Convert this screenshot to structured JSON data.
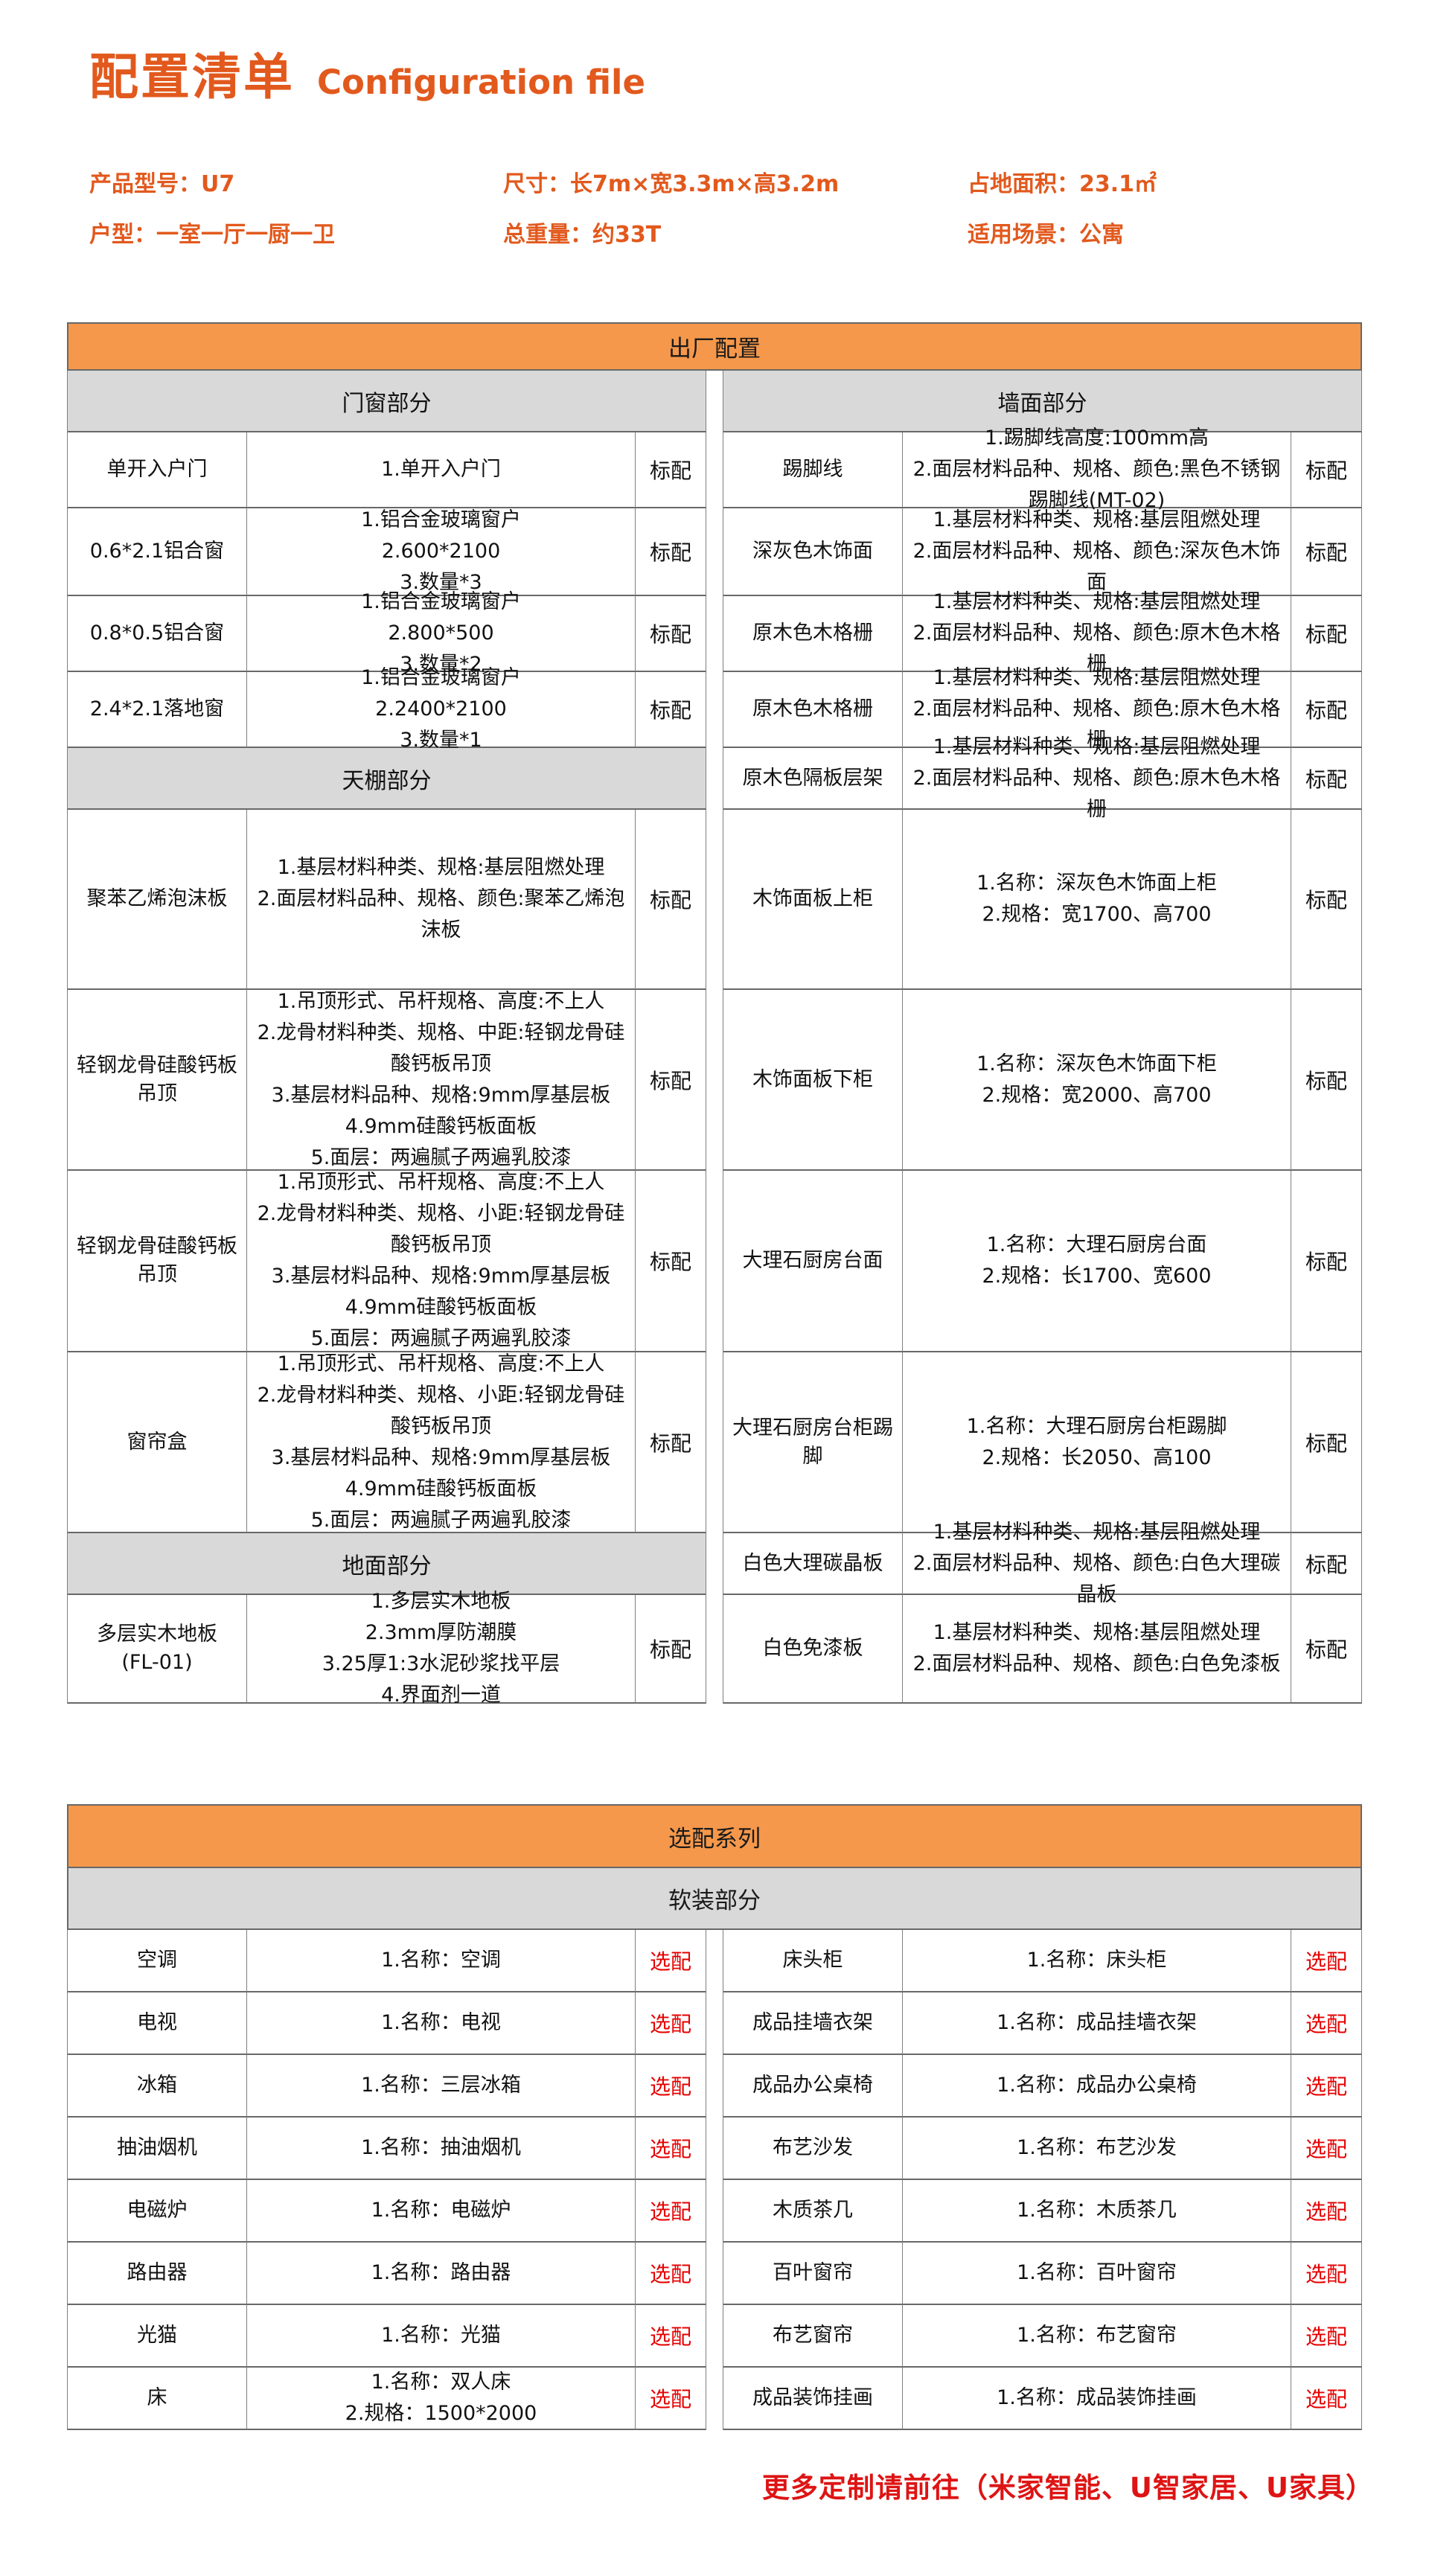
{
  "colors": {
    "accent_orange": "#F5984B",
    "title_orange": "#E2591D",
    "section_gray": "#D9D9D9",
    "optional_red": "#E60000",
    "note_red": "#DE1414"
  },
  "header": {
    "title_zh": "配置清单",
    "title_en": "Configuration file"
  },
  "product_info": {
    "row1": [
      {
        "label": "产品型号：",
        "value": "U7"
      },
      {
        "label": "尺寸：",
        "value": "长7m×宽3.3m×高3.2m"
      },
      {
        "label": "占地面积：",
        "value": "23.1㎡"
      }
    ],
    "row2": [
      {
        "label": "户型：",
        "value": "一室一厅一厨一卫"
      },
      {
        "label": "总重量：",
        "value": "约33T"
      },
      {
        "label": "适用场景：",
        "value": "公寓"
      }
    ]
  },
  "factory_table": {
    "title": "出厂配置",
    "rows": [
      {
        "left": {
          "type": "section",
          "text": "门窗部分"
        },
        "right": {
          "type": "section",
          "text": "墙面部分"
        }
      },
      {
        "left": {
          "name": "单开入户门",
          "desc": [
            "1.单开入户门"
          ],
          "flag": "标配"
        },
        "right": {
          "name": "踢脚线",
          "desc": [
            "1.踢脚线高度:100mm高",
            "2.面层材料品种、规格、颜色:黑色不锈钢踢脚线(MT-02)"
          ],
          "flag": "标配"
        }
      },
      {
        "left": {
          "name": "0.6*2.1铝合窗",
          "desc": [
            "1.铝合金玻璃窗户",
            "2.600*2100",
            "3.数量*3"
          ],
          "flag": "标配"
        },
        "right": {
          "name": "深灰色木饰面",
          "desc": [
            "1.基层材料种类、规格:基层阻燃处理",
            "2.面层材料品种、规格、颜色:深灰色木饰面"
          ],
          "flag": "标配"
        }
      },
      {
        "left": {
          "name": "0.8*0.5铝合窗",
          "desc": [
            "1.铝合金玻璃窗户",
            "2.800*500",
            "3.数量*2"
          ],
          "flag": "标配"
        },
        "right": {
          "name": "原木色木格栅",
          "desc": [
            "1.基层材料种类、规格:基层阻燃处理",
            "2.面层材料品种、规格、颜色:原木色木格栅"
          ],
          "flag": "标配"
        }
      },
      {
        "left": {
          "name": "2.4*2.1落地窗",
          "desc": [
            "1.铝合金玻璃窗户",
            "2.2400*2100",
            "3.数量*1"
          ],
          "flag": "标配"
        },
        "right": {
          "name": "原木色木格栅",
          "desc": [
            "1.基层材料种类、规格:基层阻燃处理",
            "2.面层材料品种、规格、颜色:原木色木格栅"
          ],
          "flag": "标配"
        }
      },
      {
        "left": {
          "type": "section",
          "text": "天棚部分"
        },
        "right": {
          "name": "原木色隔板层架",
          "desc": [
            "1.基层材料种类、规格:基层阻燃处理",
            "2.面层材料品种、规格、颜色:原木色木格栅"
          ],
          "flag": "标配"
        }
      },
      {
        "left": {
          "name": "聚苯乙烯泡沫板",
          "desc": [
            "1.基层材料种类、规格:基层阻燃处理",
            "2.面层材料品种、规格、颜色:聚苯乙烯泡沫板"
          ],
          "flag": "标配"
        },
        "right": {
          "name": "木饰面板上柜",
          "desc": [
            "1.名称：深灰色木饰面上柜",
            "2.规格：宽1700、高700"
          ],
          "flag": "标配"
        }
      },
      {
        "left": {
          "name": "轻钢龙骨硅酸钙板吊顶",
          "desc": [
            "1.吊顶形式、吊杆规格、高度:不上人",
            "2.龙骨材料种类、规格、中距:轻钢龙骨硅酸钙板吊顶",
            "3.基层材料品种、规格:9mm厚基层板",
            "4.9mm硅酸钙板面板",
            "5.面层：两遍腻子两遍乳胶漆"
          ],
          "flag": "标配"
        },
        "right": {
          "name": "木饰面板下柜",
          "desc": [
            "1.名称：深灰色木饰面下柜",
            "2.规格：宽2000、高700"
          ],
          "flag": "标配"
        }
      },
      {
        "left": {
          "name": "轻钢龙骨硅酸钙板吊顶",
          "desc": [
            "1.吊顶形式、吊杆规格、高度:不上人",
            "2.龙骨材料种类、规格、小距:轻钢龙骨硅酸钙板吊顶",
            "3.基层材料品种、规格:9mm厚基层板",
            "4.9mm硅酸钙板面板",
            "5.面层：两遍腻子两遍乳胶漆"
          ],
          "flag": "标配"
        },
        "right": {
          "name": "大理石厨房台面",
          "desc": [
            "1.名称：大理石厨房台面",
            "2.规格：长1700、宽600"
          ],
          "flag": "标配"
        }
      },
      {
        "left": {
          "name": "窗帘盒",
          "desc": [
            "1.吊顶形式、吊杆规格、高度:不上人",
            "2.龙骨材料种类、规格、小距:轻钢龙骨硅酸钙板吊顶",
            "3.基层材料品种、规格:9mm厚基层板",
            "4.9mm硅酸钙板面板",
            "5.面层：两遍腻子两遍乳胶漆"
          ],
          "flag": "标配"
        },
        "right": {
          "name": "大理石厨房台柜踢脚",
          "desc": [
            "1.名称：大理石厨房台柜踢脚",
            "2.规格：长2050、高100"
          ],
          "flag": "标配"
        }
      },
      {
        "left": {
          "type": "section",
          "text": "地面部分"
        },
        "right": {
          "name": "白色大理碳晶板",
          "desc": [
            "1.基层材料种类、规格:基层阻燃处理",
            "2.面层材料品种、规格、颜色:白色大理碳晶板"
          ],
          "flag": "标配"
        }
      },
      {
        "left": {
          "name": "多层实木地板\n(FL-01)",
          "desc": [
            "1.多层实木地板",
            "2.3mm厚防潮膜",
            "3.25厚1:3水泥砂浆找平层",
            "4.界面剂一道"
          ],
          "flag": "标配"
        },
        "right": {
          "name": "白色免漆板",
          "desc": [
            "1.基层材料种类、规格:基层阻燃处理",
            "2.面层材料品种、规格、颜色:白色免漆板"
          ],
          "flag": "标配"
        }
      }
    ]
  },
  "optional_table": {
    "title": "选配系列",
    "subtitle": "软装部分",
    "rows": [
      {
        "left": {
          "name": "空调",
          "desc": [
            "1.名称：空调"
          ],
          "flag": "选配"
        },
        "right": {
          "name": "床头柜",
          "desc": [
            "1.名称：床头柜"
          ],
          "flag": "选配"
        }
      },
      {
        "left": {
          "name": "电视",
          "desc": [
            "1.名称：电视"
          ],
          "flag": "选配"
        },
        "right": {
          "name": "成品挂墙衣架",
          "desc": [
            "1.名称：成品挂墙衣架"
          ],
          "flag": "选配"
        }
      },
      {
        "left": {
          "name": "冰箱",
          "desc": [
            "1.名称：三层冰箱"
          ],
          "flag": "选配"
        },
        "right": {
          "name": "成品办公桌椅",
          "desc": [
            "1.名称：成品办公桌椅"
          ],
          "flag": "选配"
        }
      },
      {
        "left": {
          "name": "抽油烟机",
          "desc": [
            "1.名称：抽油烟机"
          ],
          "flag": "选配"
        },
        "right": {
          "name": "布艺沙发",
          "desc": [
            "1.名称：布艺沙发"
          ],
          "flag": "选配"
        }
      },
      {
        "left": {
          "name": "电磁炉",
          "desc": [
            "1.名称：电磁炉"
          ],
          "flag": "选配"
        },
        "right": {
          "name": "木质茶几",
          "desc": [
            "1.名称：木质茶几"
          ],
          "flag": "选配"
        }
      },
      {
        "left": {
          "name": "路由器",
          "desc": [
            "1.名称：路由器"
          ],
          "flag": "选配"
        },
        "right": {
          "name": "百叶窗帘",
          "desc": [
            "1.名称：百叶窗帘"
          ],
          "flag": "选配"
        }
      },
      {
        "left": {
          "name": "光猫",
          "desc": [
            "1.名称：光猫"
          ],
          "flag": "选配"
        },
        "right": {
          "name": "布艺窗帘",
          "desc": [
            "1.名称：布艺窗帘"
          ],
          "flag": "选配"
        }
      },
      {
        "left": {
          "name": "床",
          "desc": [
            "1.名称：双人床",
            "2.规格：1500*2000"
          ],
          "flag": "选配"
        },
        "right": {
          "name": "成品装饰挂画",
          "desc": [
            "1.名称：成品装饰挂画"
          ],
          "flag": "选配"
        }
      }
    ]
  },
  "footer": {
    "note": "更多定制请前往（米家智能、U智家居、U家具）"
  }
}
